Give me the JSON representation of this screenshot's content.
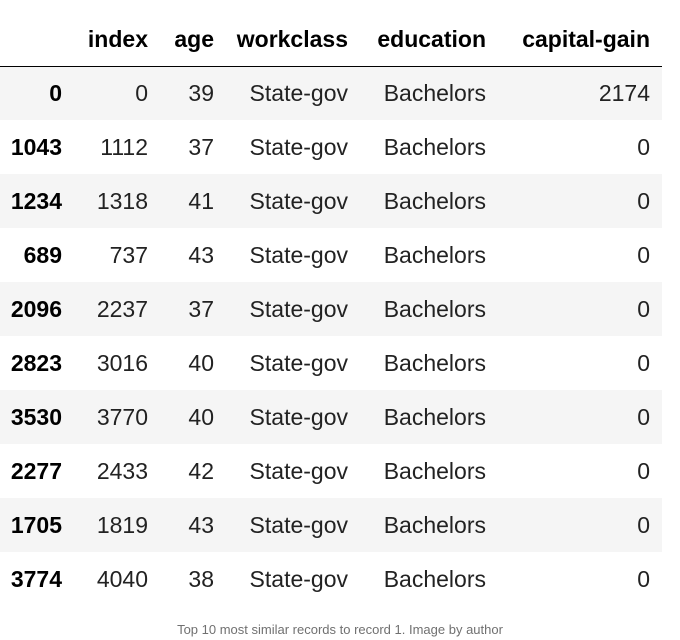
{
  "table": {
    "columns": [
      "",
      "index",
      "age",
      "workclass",
      "education",
      "capital-gain"
    ],
    "rows": [
      {
        "label": "0",
        "cells": [
          "0",
          "39",
          "State-gov",
          "Bachelors",
          "2174"
        ]
      },
      {
        "label": "1043",
        "cells": [
          "1112",
          "37",
          "State-gov",
          "Bachelors",
          "0"
        ]
      },
      {
        "label": "1234",
        "cells": [
          "1318",
          "41",
          "State-gov",
          "Bachelors",
          "0"
        ]
      },
      {
        "label": "689",
        "cells": [
          "737",
          "43",
          "State-gov",
          "Bachelors",
          "0"
        ]
      },
      {
        "label": "2096",
        "cells": [
          "2237",
          "37",
          "State-gov",
          "Bachelors",
          "0"
        ]
      },
      {
        "label": "2823",
        "cells": [
          "3016",
          "40",
          "State-gov",
          "Bachelors",
          "0"
        ]
      },
      {
        "label": "3530",
        "cells": [
          "3770",
          "40",
          "State-gov",
          "Bachelors",
          "0"
        ]
      },
      {
        "label": "2277",
        "cells": [
          "2433",
          "42",
          "State-gov",
          "Bachelors",
          "0"
        ]
      },
      {
        "label": "1705",
        "cells": [
          "1819",
          "43",
          "State-gov",
          "Bachelors",
          "0"
        ]
      },
      {
        "label": "3774",
        "cells": [
          "4040",
          "38",
          "State-gov",
          "Bachelors",
          "0"
        ]
      }
    ]
  },
  "caption": "Top 10 most similar records to record 1. Image by author"
}
